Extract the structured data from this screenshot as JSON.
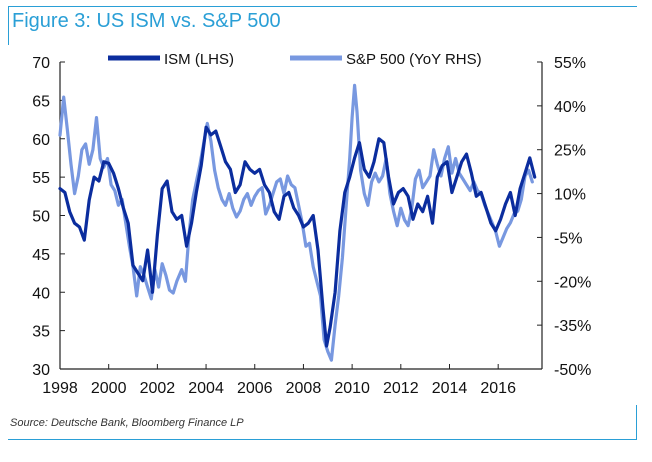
{
  "figure": {
    "title": "Figure 3: US ISM vs. S&P 500",
    "source": "Source: Deutsche Bank, Bloomberg Finance LP"
  },
  "chart_data": {
    "type": "line",
    "title": "Figure 3: US ISM vs. S&P 500",
    "legend_position": "top",
    "grid": false,
    "x_axis": {
      "range": [
        1998.0,
        2017.8
      ],
      "tick_labels": [
        "1998",
        "2000",
        "2002",
        "2004",
        "2006",
        "2008",
        "2010",
        "2012",
        "2014",
        "2016"
      ]
    },
    "y_left": {
      "range": [
        30,
        70
      ],
      "tick_labels": [
        "30",
        "35",
        "40",
        "45",
        "50",
        "55",
        "60",
        "65",
        "70"
      ]
    },
    "y_right": {
      "range": [
        -50,
        55
      ],
      "tick_labels": [
        "-50%",
        "-35%",
        "-20%",
        "-5%",
        "10%",
        "25%",
        "40%",
        "55%"
      ]
    },
    "series": [
      {
        "name": "ISM (LHS)",
        "axis": "left",
        "color": "#0b2d9e",
        "points": [
          [
            1998.0,
            53.5
          ],
          [
            1998.2,
            53.0
          ],
          [
            1998.4,
            50.5
          ],
          [
            1998.6,
            49.0
          ],
          [
            1998.8,
            48.5
          ],
          [
            1999.0,
            46.8
          ],
          [
            1999.2,
            52.0
          ],
          [
            1999.4,
            55.0
          ],
          [
            1999.6,
            54.5
          ],
          [
            1999.8,
            57.0
          ],
          [
            2000.0,
            56.8
          ],
          [
            2000.2,
            55.5
          ],
          [
            2000.4,
            53.5
          ],
          [
            2000.6,
            51.0
          ],
          [
            2000.8,
            49.0
          ],
          [
            2001.0,
            43.5
          ],
          [
            2001.2,
            42.5
          ],
          [
            2001.4,
            41.5
          ],
          [
            2001.6,
            45.5
          ],
          [
            2001.8,
            40.0
          ],
          [
            2002.0,
            47.5
          ],
          [
            2002.2,
            53.5
          ],
          [
            2002.4,
            54.5
          ],
          [
            2002.6,
            50.5
          ],
          [
            2002.8,
            49.5
          ],
          [
            2003.0,
            50.0
          ],
          [
            2003.2,
            46.0
          ],
          [
            2003.4,
            49.0
          ],
          [
            2003.6,
            53.0
          ],
          [
            2003.8,
            56.5
          ],
          [
            2004.0,
            61.5
          ],
          [
            2004.2,
            60.5
          ],
          [
            2004.4,
            61.0
          ],
          [
            2004.6,
            59.0
          ],
          [
            2004.8,
            57.0
          ],
          [
            2005.0,
            56.0
          ],
          [
            2005.2,
            53.0
          ],
          [
            2005.4,
            54.0
          ],
          [
            2005.6,
            57.0
          ],
          [
            2005.8,
            56.0
          ],
          [
            2006.0,
            55.5
          ],
          [
            2006.2,
            56.0
          ],
          [
            2006.4,
            54.0
          ],
          [
            2006.6,
            53.0
          ],
          [
            2006.8,
            50.5
          ],
          [
            2007.0,
            49.5
          ],
          [
            2007.2,
            52.5
          ],
          [
            2007.4,
            53.0
          ],
          [
            2007.6,
            51.0
          ],
          [
            2007.8,
            50.0
          ],
          [
            2008.0,
            48.5
          ],
          [
            2008.2,
            49.0
          ],
          [
            2008.4,
            50.0
          ],
          [
            2008.6,
            45.5
          ],
          [
            2008.8,
            38.0
          ],
          [
            2008.95,
            33.0
          ],
          [
            2009.1,
            35.5
          ],
          [
            2009.3,
            40.0
          ],
          [
            2009.5,
            48.0
          ],
          [
            2009.7,
            53.0
          ],
          [
            2009.9,
            55.0
          ],
          [
            2010.1,
            57.5
          ],
          [
            2010.3,
            59.5
          ],
          [
            2010.5,
            56.0
          ],
          [
            2010.7,
            55.0
          ],
          [
            2010.9,
            57.0
          ],
          [
            2011.1,
            60.0
          ],
          [
            2011.3,
            59.5
          ],
          [
            2011.5,
            55.0
          ],
          [
            2011.7,
            51.5
          ],
          [
            2011.9,
            53.0
          ],
          [
            2012.1,
            53.5
          ],
          [
            2012.3,
            52.5
          ],
          [
            2012.5,
            49.5
          ],
          [
            2012.7,
            51.5
          ],
          [
            2012.9,
            50.5
          ],
          [
            2013.1,
            52.5
          ],
          [
            2013.3,
            49.0
          ],
          [
            2013.5,
            55.0
          ],
          [
            2013.7,
            56.5
          ],
          [
            2013.9,
            57.0
          ],
          [
            2014.1,
            53.0
          ],
          [
            2014.3,
            55.0
          ],
          [
            2014.5,
            57.0
          ],
          [
            2014.7,
            58.0
          ],
          [
            2014.9,
            55.5
          ],
          [
            2015.1,
            52.5
          ],
          [
            2015.3,
            53.0
          ],
          [
            2015.5,
            51.0
          ],
          [
            2015.7,
            49.0
          ],
          [
            2015.9,
            48.0
          ],
          [
            2016.1,
            49.5
          ],
          [
            2016.3,
            51.5
          ],
          [
            2016.5,
            53.0
          ],
          [
            2016.7,
            50.0
          ],
          [
            2016.9,
            53.5
          ],
          [
            2017.1,
            55.5
          ],
          [
            2017.3,
            57.5
          ],
          [
            2017.5,
            55.0
          ]
        ]
      },
      {
        "name": "S&P 500 (YoY RHS)",
        "axis": "right",
        "color": "#7898e0",
        "points": [
          [
            1998.0,
            30
          ],
          [
            1998.15,
            43
          ],
          [
            1998.3,
            32
          ],
          [
            1998.45,
            20
          ],
          [
            1998.6,
            10
          ],
          [
            1998.75,
            16
          ],
          [
            1998.9,
            25
          ],
          [
            1999.05,
            27
          ],
          [
            1999.2,
            20
          ],
          [
            1999.35,
            25
          ],
          [
            1999.5,
            36
          ],
          [
            1999.65,
            22
          ],
          [
            1999.8,
            19
          ],
          [
            1999.95,
            22
          ],
          [
            2000.1,
            13
          ],
          [
            2000.25,
            11
          ],
          [
            2000.4,
            6
          ],
          [
            2000.55,
            8
          ],
          [
            2000.7,
            0
          ],
          [
            2000.85,
            -8
          ],
          [
            2001.0,
            -15
          ],
          [
            2001.15,
            -25
          ],
          [
            2001.3,
            -15
          ],
          [
            2001.45,
            -18
          ],
          [
            2001.6,
            -22
          ],
          [
            2001.75,
            -26
          ],
          [
            2001.9,
            -16
          ],
          [
            2002.05,
            -22
          ],
          [
            2002.2,
            -14
          ],
          [
            2002.35,
            -18
          ],
          [
            2002.5,
            -23
          ],
          [
            2002.65,
            -24
          ],
          [
            2002.8,
            -20
          ],
          [
            2003.0,
            -16
          ],
          [
            2003.15,
            -20
          ],
          [
            2003.3,
            -4
          ],
          [
            2003.45,
            8
          ],
          [
            2003.6,
            14
          ],
          [
            2003.75,
            20
          ],
          [
            2003.9,
            27
          ],
          [
            2004.05,
            34
          ],
          [
            2004.2,
            28
          ],
          [
            2004.35,
            18
          ],
          [
            2004.5,
            12
          ],
          [
            2004.65,
            8
          ],
          [
            2004.8,
            6
          ],
          [
            2004.95,
            10
          ],
          [
            2005.1,
            5
          ],
          [
            2005.25,
            2
          ],
          [
            2005.4,
            4
          ],
          [
            2005.55,
            8
          ],
          [
            2005.7,
            10
          ],
          [
            2005.85,
            6
          ],
          [
            2006.0,
            9
          ],
          [
            2006.15,
            11
          ],
          [
            2006.3,
            12
          ],
          [
            2006.45,
            3
          ],
          [
            2006.6,
            6
          ],
          [
            2006.75,
            10
          ],
          [
            2006.9,
            14
          ],
          [
            2007.05,
            15
          ],
          [
            2007.2,
            10
          ],
          [
            2007.35,
            16
          ],
          [
            2007.5,
            13
          ],
          [
            2007.65,
            12
          ],
          [
            2007.8,
            6
          ],
          [
            2007.95,
            0
          ],
          [
            2008.1,
            -8
          ],
          [
            2008.25,
            -7
          ],
          [
            2008.4,
            -15
          ],
          [
            2008.55,
            -20
          ],
          [
            2008.7,
            -25
          ],
          [
            2008.85,
            -40
          ],
          [
            2009.0,
            -44
          ],
          [
            2009.15,
            -47
          ],
          [
            2009.3,
            -35
          ],
          [
            2009.45,
            -25
          ],
          [
            2009.6,
            -12
          ],
          [
            2009.75,
            5
          ],
          [
            2009.9,
            22
          ],
          [
            2010.0,
            36
          ],
          [
            2010.1,
            47
          ],
          [
            2010.2,
            38
          ],
          [
            2010.35,
            18
          ],
          [
            2010.5,
            10
          ],
          [
            2010.65,
            6
          ],
          [
            2010.8,
            14
          ],
          [
            2010.95,
            17
          ],
          [
            2011.1,
            14
          ],
          [
            2011.25,
            16
          ],
          [
            2011.4,
            22
          ],
          [
            2011.55,
            10
          ],
          [
            2011.7,
            4
          ],
          [
            2011.85,
            -1
          ],
          [
            2012.0,
            5
          ],
          [
            2012.15,
            1
          ],
          [
            2012.3,
            -1
          ],
          [
            2012.45,
            5
          ],
          [
            2012.6,
            15
          ],
          [
            2012.75,
            18
          ],
          [
            2012.9,
            12
          ],
          [
            2013.05,
            14
          ],
          [
            2013.2,
            16
          ],
          [
            2013.35,
            25
          ],
          [
            2013.5,
            20
          ],
          [
            2013.65,
            16
          ],
          [
            2013.8,
            22
          ],
          [
            2013.95,
            26
          ],
          [
            2014.1,
            17
          ],
          [
            2014.25,
            22
          ],
          [
            2014.4,
            17
          ],
          [
            2014.55,
            15
          ],
          [
            2014.7,
            13
          ],
          [
            2014.85,
            11
          ],
          [
            2015.0,
            14
          ],
          [
            2015.15,
            11
          ],
          [
            2015.3,
            10
          ],
          [
            2015.45,
            6
          ],
          [
            2015.6,
            3
          ],
          [
            2015.75,
            0
          ],
          [
            2015.9,
            -3
          ],
          [
            2016.05,
            -8
          ],
          [
            2016.2,
            -5
          ],
          [
            2016.35,
            -2
          ],
          [
            2016.5,
            0
          ],
          [
            2016.65,
            3
          ],
          [
            2016.8,
            4
          ],
          [
            2016.95,
            8
          ],
          [
            2017.1,
            16
          ],
          [
            2017.25,
            18
          ],
          [
            2017.4,
            14
          ]
        ]
      }
    ]
  }
}
